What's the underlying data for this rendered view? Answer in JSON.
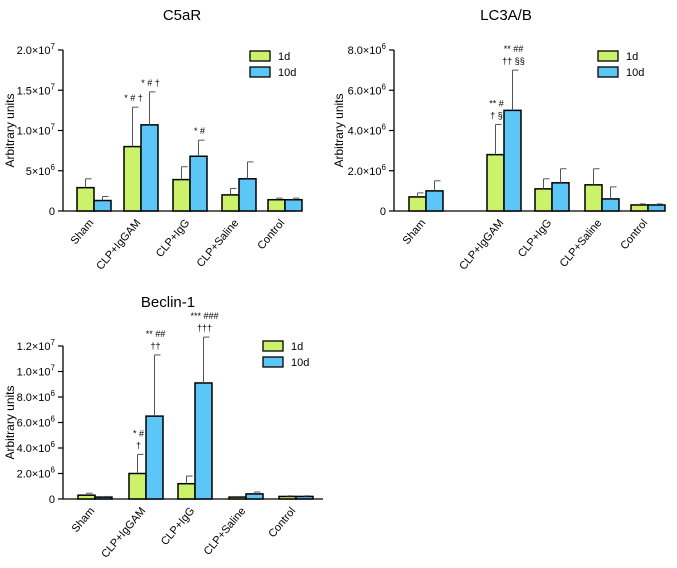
{
  "colors": {
    "series_1d": "#ccf26b",
    "series_10d": "#5cc6f7",
    "axis": "#000000"
  },
  "chart_data": [
    {
      "type": "bar",
      "title": "C5aR",
      "xlabel": "",
      "ylabel": "Arbitrary units",
      "ylim": [
        0,
        20000000
      ],
      "yticks": [
        0,
        5000000,
        10000000,
        15000000,
        20000000
      ],
      "ytick_labels": [
        {
          "base": "0",
          "exp": ""
        },
        {
          "base": "5×10",
          "exp": "6"
        },
        {
          "base": "1.0×10",
          "exp": "7"
        },
        {
          "base": "1.5×10",
          "exp": "7"
        },
        {
          "base": "2.0×10",
          "exp": "7"
        }
      ],
      "categories": [
        "Sham",
        "CLP+IgGAM",
        "CLP+IgG",
        "CLP+Saline",
        "Control"
      ],
      "series": [
        {
          "name": "1d",
          "values": [
            2900000,
            8000000,
            3900000,
            2000000,
            1400000
          ],
          "errors": [
            1100000,
            4900000,
            1600000,
            800000,
            200000
          ]
        },
        {
          "name": "10d",
          "values": [
            1300000,
            10700000,
            6800000,
            4000000,
            1400000
          ],
          "errors": [
            500000,
            4100000,
            2000000,
            2100000,
            200000
          ]
        }
      ],
      "annotations": [
        {
          "category": 1,
          "series": 0,
          "lines": [
            "* # †"
          ]
        },
        {
          "category": 1,
          "series": 1,
          "lines": [
            "* # †"
          ]
        },
        {
          "category": 2,
          "series": 1,
          "lines": [
            "* #"
          ]
        }
      ],
      "legend": [
        "1d",
        "10d"
      ]
    },
    {
      "type": "bar",
      "title": "LC3A/B",
      "xlabel": "",
      "ylabel": "Arbitrary units",
      "ylim": [
        0,
        8000000
      ],
      "yticks": [
        0,
        2000000,
        4000000,
        6000000,
        8000000
      ],
      "ytick_labels": [
        {
          "base": "0",
          "exp": ""
        },
        {
          "base": "2.0×10",
          "exp": "6"
        },
        {
          "base": "4.0×10",
          "exp": "6"
        },
        {
          "base": "6.0×10",
          "exp": "6"
        },
        {
          "base": "8.0×10",
          "exp": "6"
        }
      ],
      "categories": [
        "Sham",
        "CLP+IgGAM",
        "CLP+IgG",
        "CLP+Saline",
        "Control"
      ],
      "series": [
        {
          "name": "1d",
          "values": [
            700000,
            2800000,
            1100000,
            1300000,
            300000
          ],
          "errors": [
            200000,
            1500000,
            500000,
            800000,
            50000
          ]
        },
        {
          "name": "10d",
          "values": [
            1000000,
            5000000,
            1400000,
            600000,
            300000
          ],
          "errors": [
            500000,
            2000000,
            700000,
            600000,
            50000
          ]
        }
      ],
      "annotations": [
        {
          "category": 1,
          "series": 0,
          "lines": [
            "** #",
            "† §"
          ]
        },
        {
          "category": 1,
          "series": 1,
          "lines": [
            "** ##",
            "†† §§"
          ]
        }
      ],
      "legend": [
        "1d",
        "10d"
      ]
    },
    {
      "type": "bar",
      "title": "Beclin-1",
      "xlabel": "",
      "ylabel": "Arbitrary units",
      "ylim": [
        0,
        12000000
      ],
      "yticks": [
        0,
        2000000,
        4000000,
        6000000,
        8000000,
        10000000,
        12000000
      ],
      "ytick_labels": [
        {
          "base": "0",
          "exp": ""
        },
        {
          "base": "2.0×10",
          "exp": "6"
        },
        {
          "base": "4.0×10",
          "exp": "6"
        },
        {
          "base": "6.0×10",
          "exp": "6"
        },
        {
          "base": "8.0×10",
          "exp": "6"
        },
        {
          "base": "1.0×10",
          "exp": "7"
        },
        {
          "base": "1.2×10",
          "exp": "7"
        }
      ],
      "categories": [
        "Sham",
        "CLP+IgGAM",
        "CLP+IgG",
        "CLP+Saline",
        "Control"
      ],
      "series": [
        {
          "name": "1d",
          "values": [
            300000,
            2000000,
            1200000,
            150000,
            200000
          ],
          "errors": [
            150000,
            1500000,
            600000,
            50000,
            50000
          ]
        },
        {
          "name": "10d",
          "values": [
            150000,
            6500000,
            9100000,
            400000,
            200000
          ],
          "errors": [
            50000,
            4800000,
            3600000,
            150000,
            50000
          ]
        }
      ],
      "annotations": [
        {
          "category": 1,
          "series": 0,
          "lines": [
            "* #",
            "†"
          ]
        },
        {
          "category": 1,
          "series": 1,
          "lines": [
            "** ##",
            "††"
          ]
        },
        {
          "category": 2,
          "series": 1,
          "lines": [
            "*** ###",
            "†††"
          ]
        }
      ],
      "legend": [
        "1d",
        "10d"
      ]
    }
  ]
}
